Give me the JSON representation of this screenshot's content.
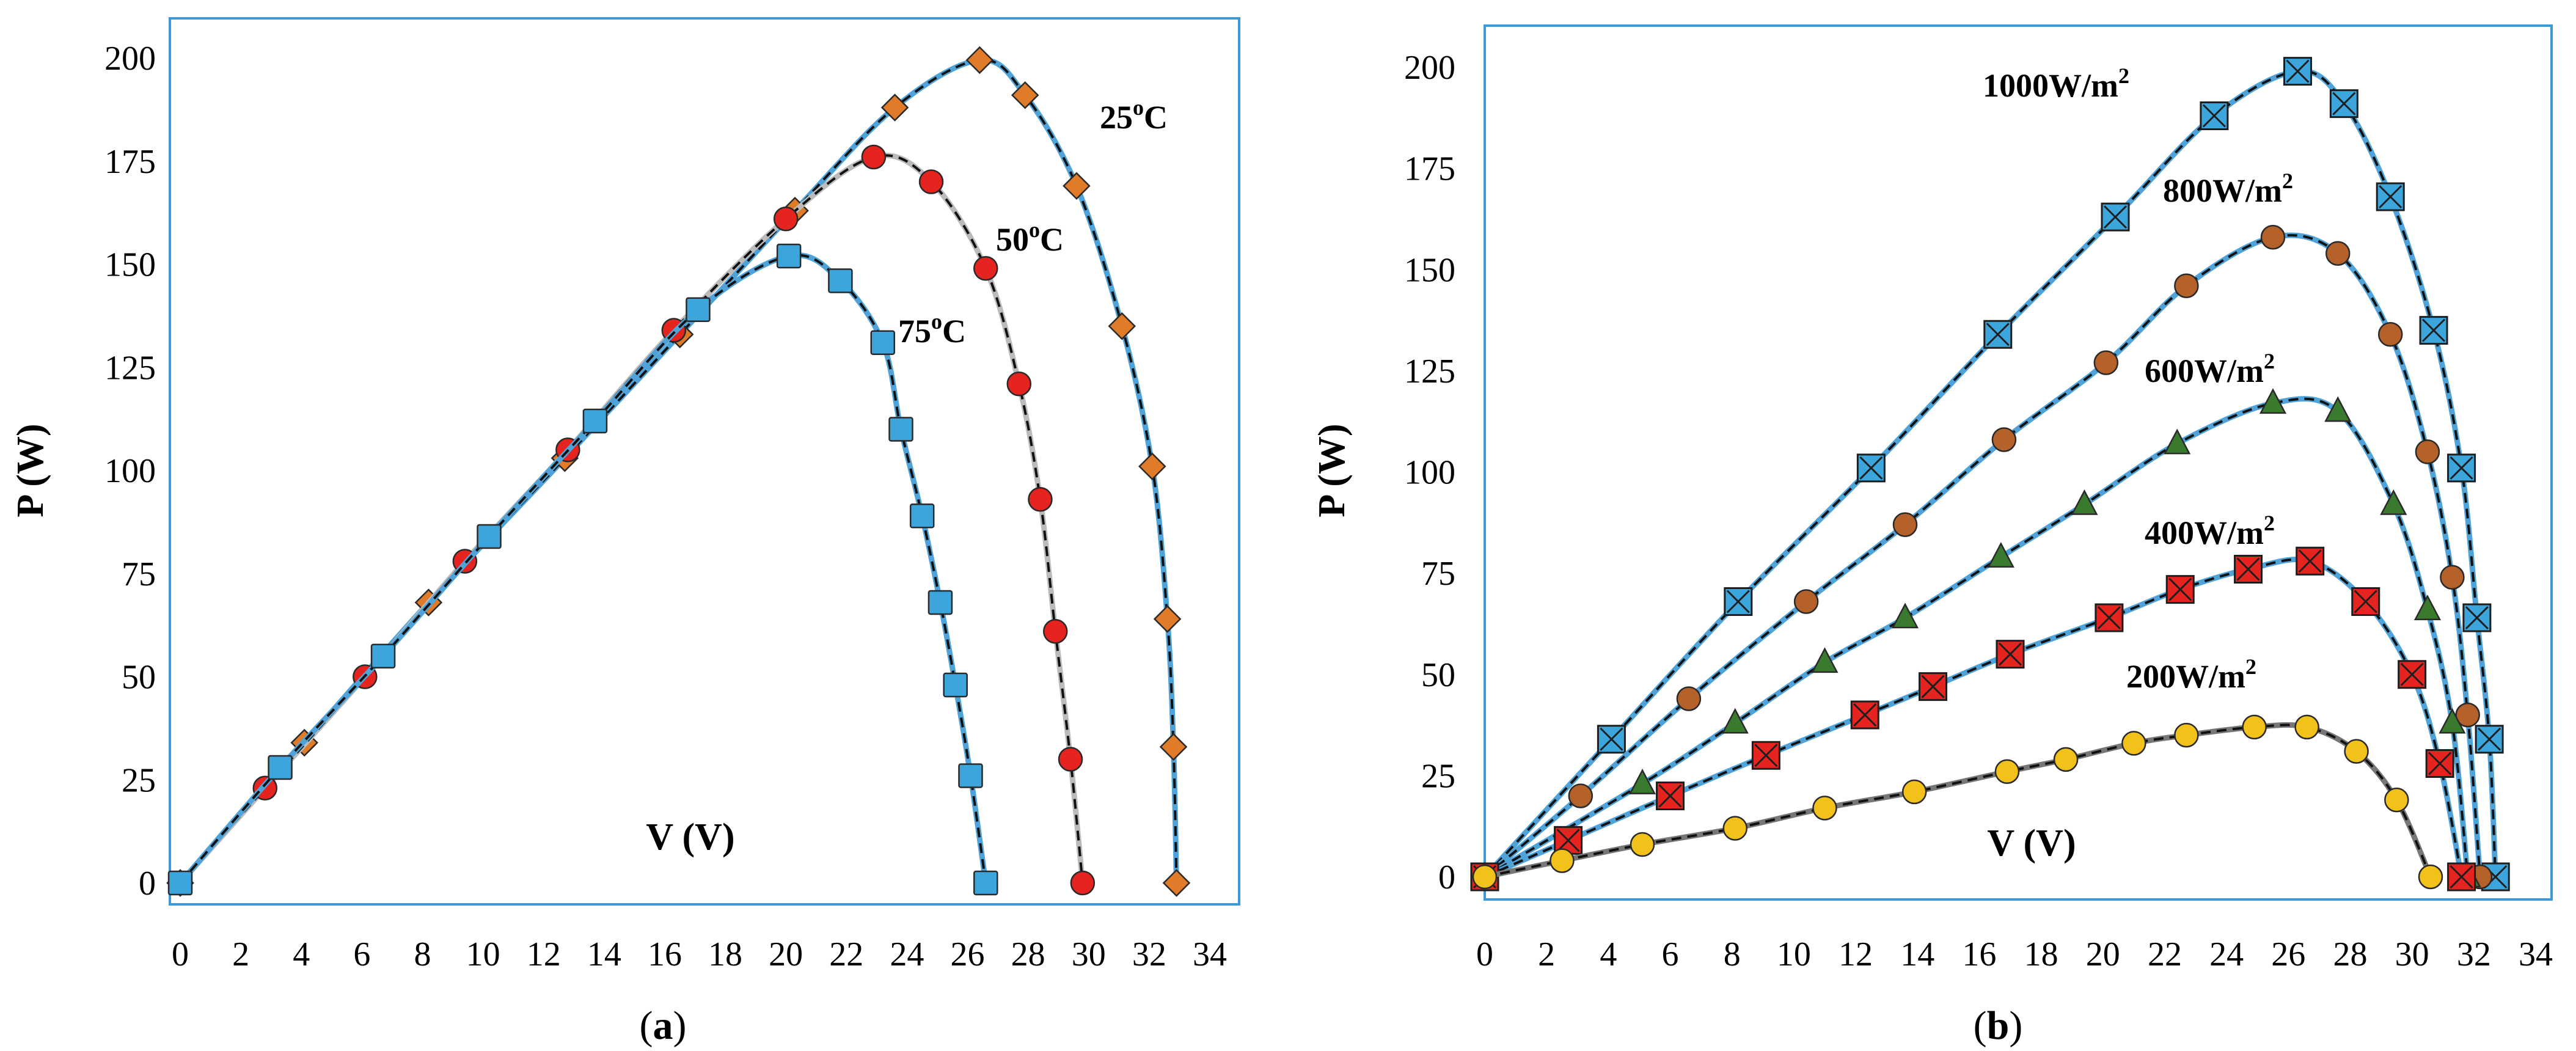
{
  "chart_data": [
    {
      "type": "line",
      "panel_label": "a",
      "xlabel": "V (V)",
      "ylabel": "P (W)",
      "xlim": [
        0,
        34
      ],
      "ylim": [
        0,
        200
      ],
      "xticks": [
        "0",
        "2",
        "4",
        "6",
        "8",
        "10",
        "12",
        "14",
        "16",
        "18",
        "20",
        "22",
        "24",
        "26",
        "28",
        "30",
        "32",
        "34"
      ],
      "yticks": [
        "0",
        "25",
        "50",
        "75",
        "100",
        "125",
        "150",
        "175",
        "200"
      ],
      "grid": false,
      "series": [
        {
          "name": "25°C",
          "label_base": "25",
          "label_sup": "o",
          "label_unit": "C",
          "marker": "diamond",
          "marker_color": "#E07B29",
          "line_color": "#4FA3D9",
          "x": [
            0,
            4.1,
            8.2,
            12.7,
            16.5,
            20.3,
            23.6,
            26.4,
            27.9,
            29.6,
            31.1,
            32.1,
            32.6,
            32.8,
            32.9
          ],
          "y": [
            0,
            34,
            68,
            103,
            133,
            163,
            188,
            199.5,
            191,
            169,
            135,
            101,
            64,
            33,
            0
          ]
        },
        {
          "name": "50°C",
          "label_base": "50",
          "label_sup": "o",
          "label_unit": "C",
          "marker": "circle",
          "marker_color": "#E52420",
          "line_color": "#BBBBBB",
          "x": [
            0,
            2.8,
            6.1,
            9.4,
            12.8,
            16.3,
            20,
            22.9,
            24.8,
            26.6,
            27.7,
            28.4,
            28.9,
            29.4,
            29.8
          ],
          "y": [
            0,
            23,
            50,
            78,
            105,
            134,
            161,
            176,
            170,
            149,
            121,
            93,
            61,
            30,
            0
          ]
        },
        {
          "name": "75°C",
          "label_base": "75",
          "label_sup": "o",
          "label_unit": "C",
          "marker": "square",
          "marker_color": "#3BA5DC",
          "line_color": "#4FA3D9",
          "x": [
            0,
            3.3,
            6.7,
            10.2,
            13.7,
            17.1,
            20.1,
            21.8,
            23.2,
            23.8,
            24.5,
            25.1,
            25.6,
            26.1,
            26.6
          ],
          "y": [
            0,
            28,
            55,
            84,
            112,
            139,
            152,
            146,
            131,
            110,
            89,
            68,
            48,
            26,
            0
          ]
        }
      ]
    },
    {
      "type": "line",
      "panel_label": "b",
      "xlabel": "V (V)",
      "ylabel": "P (W)",
      "xlim": [
        0,
        34
      ],
      "ylim": [
        0,
        200
      ],
      "xticks": [
        "0",
        "2",
        "4",
        "6",
        "8",
        "10",
        "12",
        "14",
        "16",
        "18",
        "20",
        "22",
        "24",
        "26",
        "28",
        "30",
        "32",
        "34"
      ],
      "yticks": [
        "0",
        "25",
        "50",
        "75",
        "100",
        "125",
        "150",
        "175",
        "200"
      ],
      "grid": false,
      "series": [
        {
          "name": "1000W/m²",
          "label_base": "1000W/m",
          "label_sup": "2",
          "label_unit": "",
          "marker": "square-x",
          "marker_color": "#3BA5DC",
          "line_color": "#4FA3D9",
          "x": [
            0,
            4.1,
            8.2,
            12.5,
            16.6,
            20.4,
            23.6,
            26.3,
            27.8,
            29.3,
            30.7,
            31.6,
            32.1,
            32.5,
            32.7
          ],
          "y": [
            0,
            34,
            68,
            101,
            134,
            163,
            188,
            199,
            191,
            168,
            135,
            101,
            64,
            34,
            0
          ]
        },
        {
          "name": "800W/m²",
          "label_base": "800W/m",
          "label_sup": "2",
          "label_unit": "",
          "marker": "circle",
          "marker_color": "#B5612A",
          "line_color": "#4FA3D9",
          "x": [
            0,
            3.1,
            6.6,
            10.4,
            13.6,
            16.8,
            20.1,
            22.7,
            25.5,
            27.6,
            29.3,
            30.5,
            31.3,
            31.8,
            32.2
          ],
          "y": [
            0,
            20,
            44,
            68,
            87,
            108,
            127,
            146,
            158,
            154,
            134,
            105,
            74,
            40,
            0
          ]
        },
        {
          "name": "600W/m²",
          "label_base": "600W/m",
          "label_sup": "2",
          "label_unit": "",
          "marker": "triangle",
          "marker_color": "#3A7A2E",
          "line_color": "#4FA3D9",
          "x": [
            0,
            5.1,
            8.1,
            11,
            13.6,
            16.7,
            19.4,
            22.4,
            25.5,
            27.6,
            29.4,
            30.5,
            31.3,
            31.8
          ],
          "y": [
            0,
            23,
            38,
            53,
            64,
            79,
            92,
            107,
            117,
            115,
            92,
            66,
            38,
            0
          ]
        },
        {
          "name": "400W/m²",
          "label_base": "400W/m",
          "label_sup": "2",
          "label_unit": "",
          "marker": "square-x",
          "marker_color": "#E52420",
          "line_color": "#4FA3D9",
          "x": [
            0,
            2.7,
            6,
            9.1,
            12.3,
            14.5,
            17,
            20.2,
            22.5,
            24.7,
            26.7,
            28.5,
            30,
            30.9,
            31.6
          ],
          "y": [
            0,
            9,
            20,
            30,
            40,
            47,
            55,
            64,
            71,
            76,
            78,
            68,
            50,
            28,
            0
          ]
        },
        {
          "name": "200W/m²",
          "label_base": "200W/m",
          "label_sup": "2",
          "label_unit": "",
          "marker": "circle",
          "marker_color": "#F2C21A",
          "line_color": "#777777",
          "x": [
            0,
            2.5,
            5.1,
            8.1,
            11,
            13.9,
            16.9,
            18.8,
            21,
            22.7,
            24.9,
            26.6,
            28.2,
            29.5,
            30.6
          ],
          "y": [
            0,
            4,
            8,
            12,
            17,
            21,
            26,
            29,
            33,
            35,
            37,
            37,
            31,
            19,
            0
          ]
        }
      ]
    }
  ]
}
